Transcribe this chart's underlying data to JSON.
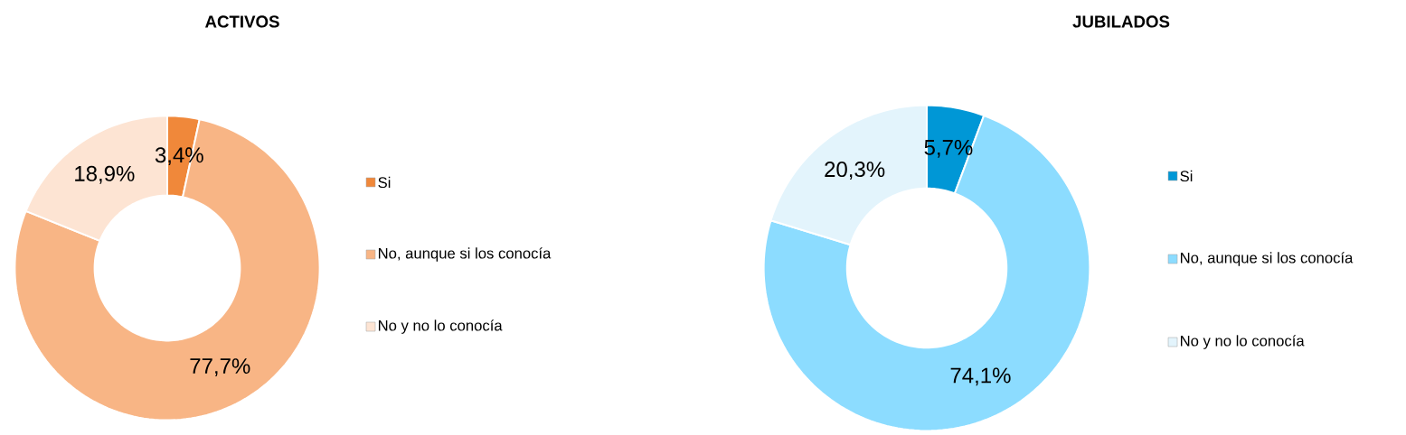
{
  "chart_data": [
    {
      "type": "donut",
      "title": "ACTIVOS",
      "categories": [
        "Si",
        "No, aunque si los conocía",
        "No y no lo conocía"
      ],
      "values": [
        3.4,
        77.7,
        18.9
      ],
      "value_labels": [
        "3,4%",
        "77,7%",
        "18,9%"
      ],
      "colors": [
        "#f0883a",
        "#f8b585",
        "#fde4d3"
      ],
      "legend": "right"
    },
    {
      "type": "donut",
      "title": "JUBILADOS",
      "categories": [
        "Si",
        "No, aunque si los conocía",
        "No y no lo conocía"
      ],
      "values": [
        5.7,
        74.1,
        20.3
      ],
      "value_labels": [
        "5,7%",
        "74,1%",
        "20,3%"
      ],
      "colors": [
        "#0097d6",
        "#8cdcff",
        "#e3f4fc"
      ],
      "legend": "right"
    }
  ]
}
